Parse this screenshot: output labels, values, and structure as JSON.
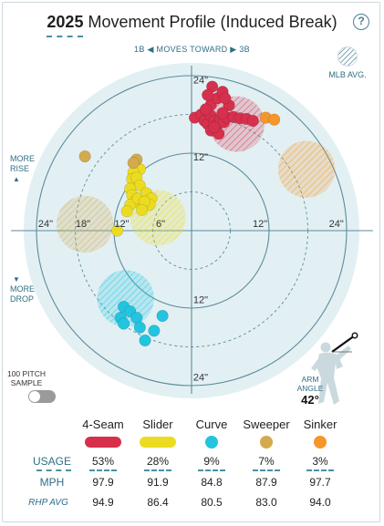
{
  "header": {
    "year": "2025",
    "title_rest": "Movement Profile (Induced Break)",
    "help_icon": "?"
  },
  "direction": {
    "left": "1B",
    "center": "MOVES TOWARD",
    "right": "3B"
  },
  "legend": {
    "mlb_avg_label": "MLB AVG."
  },
  "side_labels": {
    "more_rise_1": "MORE",
    "more_rise_2": "RISE",
    "more_drop_1": "MORE",
    "more_drop_2": "DROP"
  },
  "sample": {
    "line1": "100 PITCH",
    "line2": "SAMPLE",
    "toggle_on": false
  },
  "arm": {
    "line1": "ARM",
    "line2": "ANGLE",
    "value": "42°"
  },
  "colors": {
    "4-Seam": "#d6304d",
    "Slider": "#ecdc21",
    "Curve": "#22c4df",
    "Sweeper": "#d3aa4e",
    "Sinker": "#f5962a",
    "background_disc": "#e2f0f4",
    "grid": "#5d8b9a"
  },
  "chart_data": {
    "type": "scatter",
    "x_unit": "inches horizontal break (negative = 1B side)",
    "y_unit": "inches induced vertical break",
    "axis_range": [
      -24,
      24
    ],
    "rings": [
      6,
      12,
      24
    ],
    "ring_tick_labels": {
      "top": [
        "24\"",
        "12\""
      ],
      "bottom": [
        "12\"",
        "24\""
      ],
      "left": [
        "24\"",
        "18\"",
        "12\"",
        "6\""
      ],
      "right": [
        "12\"",
        "24\""
      ]
    },
    "pitches": [
      {
        "name": "4-Seam",
        "avg_circle": {
          "x": 7,
          "y": 16.5,
          "r": 4.3
        },
        "points": [
          [
            0.5,
            17.5
          ],
          [
            1.5,
            18
          ],
          [
            2,
            17
          ],
          [
            2.5,
            16.5
          ],
          [
            3,
            17.8
          ],
          [
            3.5,
            17
          ],
          [
            4,
            16.4
          ],
          [
            4.5,
            17.3
          ],
          [
            5,
            16.8
          ],
          [
            5.5,
            17.5
          ],
          [
            6.5,
            17.6
          ],
          [
            7.5,
            17.4
          ],
          [
            8.5,
            17.3
          ],
          [
            9.5,
            17
          ],
          [
            3,
            19.5
          ],
          [
            4,
            20.5
          ],
          [
            4.8,
            21.5
          ],
          [
            3.2,
            22.3
          ],
          [
            2.5,
            21
          ],
          [
            5.8,
            19.4
          ],
          [
            3,
            15.5
          ],
          [
            4.2,
            15
          ],
          [
            3.5,
            16
          ],
          [
            4.8,
            18.2
          ],
          [
            2.2,
            18.8
          ],
          [
            5.2,
            20.5
          ]
        ]
      },
      {
        "name": "Slider",
        "avg_circle": {
          "x": -5.2,
          "y": 2,
          "r": 4.3
        },
        "points": [
          [
            -8,
            9.5
          ],
          [
            -9,
            9
          ],
          [
            -9.2,
            8
          ],
          [
            -8.5,
            8.2
          ],
          [
            -8,
            7
          ],
          [
            -9.5,
            6.5
          ],
          [
            -9.2,
            5.5
          ],
          [
            -8.8,
            4.5
          ],
          [
            -9.5,
            4
          ],
          [
            -10,
            3
          ],
          [
            -8.3,
            5
          ],
          [
            -7,
            5.8
          ],
          [
            -6.2,
            5
          ],
          [
            -6.5,
            4
          ],
          [
            -7.3,
            4.5
          ],
          [
            -7.7,
            3.2
          ],
          [
            -11.5,
            0
          ]
        ]
      },
      {
        "name": "Curve",
        "avg_circle": {
          "x": -10.2,
          "y": -10.5,
          "r": 4.4
        },
        "points": [
          [
            -10.5,
            -11.8
          ],
          [
            -9.5,
            -12.5
          ],
          [
            -11,
            -13.5
          ],
          [
            -8.5,
            -13.5
          ],
          [
            -10.5,
            -14.4
          ],
          [
            -8,
            -15
          ],
          [
            -4.5,
            -13.2
          ],
          [
            -5.8,
            -15.5
          ],
          [
            -7.2,
            -17
          ]
        ]
      },
      {
        "name": "Sweeper",
        "avg_circle": {
          "x": -16.5,
          "y": 1,
          "r": 4.4
        },
        "points": [
          [
            -8.5,
            11
          ],
          [
            -16.5,
            11.5
          ],
          [
            -9,
            10.5
          ]
        ]
      },
      {
        "name": "Sinker",
        "avg_circle": {
          "x": 17.8,
          "y": 9.5,
          "r": 4.4
        },
        "points": [
          [
            11.5,
            17.5
          ],
          [
            12.8,
            17.2
          ]
        ]
      }
    ]
  },
  "table": {
    "pitch_names": [
      "4-Seam",
      "Slider",
      "Curve",
      "Sweeper",
      "Sinker"
    ],
    "rows": [
      {
        "label": "USAGE",
        "values": [
          "53%",
          "28%",
          "9%",
          "7%",
          "3%"
        ]
      },
      {
        "label": "MPH",
        "values": [
          "97.9",
          "91.9",
          "84.8",
          "87.9",
          "97.7"
        ]
      },
      {
        "label": "RHP AVG",
        "values": [
          "94.9",
          "86.4",
          "80.5",
          "83.0",
          "94.0"
        ]
      }
    ]
  }
}
